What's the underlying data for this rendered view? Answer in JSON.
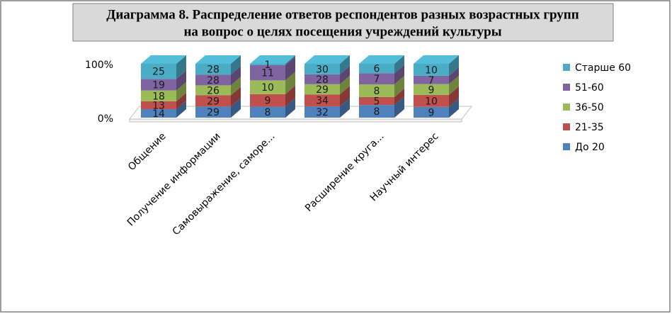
{
  "chart_data": {
    "type": "bar3d_stacked",
    "title": [
      "Диаграмма  8. Распределение ответов респондентов разных возрастных групп",
      "на вопрос о целях посещения учреждений культуры"
    ],
    "stacking": "percent",
    "categories": [
      "Общение",
      "Получение информации",
      "Самовыражение, саморе...",
      null,
      "Расширение круга...",
      "Научный интерес"
    ],
    "series": [
      {
        "name": "До 20",
        "color": "#4f81bd",
        "values": [
          14,
          29,
          8,
          32,
          8,
          9
        ]
      },
      {
        "name": "21-35",
        "color": "#c0504d",
        "values": [
          13,
          29,
          9,
          34,
          5,
          10
        ]
      },
      {
        "name": "36-50",
        "color": "#9bbb59",
        "values": [
          18,
          26,
          10,
          29,
          8,
          9
        ]
      },
      {
        "name": "51-60",
        "color": "#8064a2",
        "values": [
          19,
          28,
          11,
          28,
          7,
          7
        ]
      },
      {
        "name": "Старше 60",
        "color": "#4bacc6",
        "values": [
          25,
          28,
          1,
          30,
          6,
          10
        ]
      }
    ],
    "ylim": [
      0,
      100
    ],
    "yticks": [
      {
        "value": 0,
        "label": "0%"
      },
      {
        "value": 100,
        "label": "100%"
      }
    ],
    "legend": "right"
  }
}
